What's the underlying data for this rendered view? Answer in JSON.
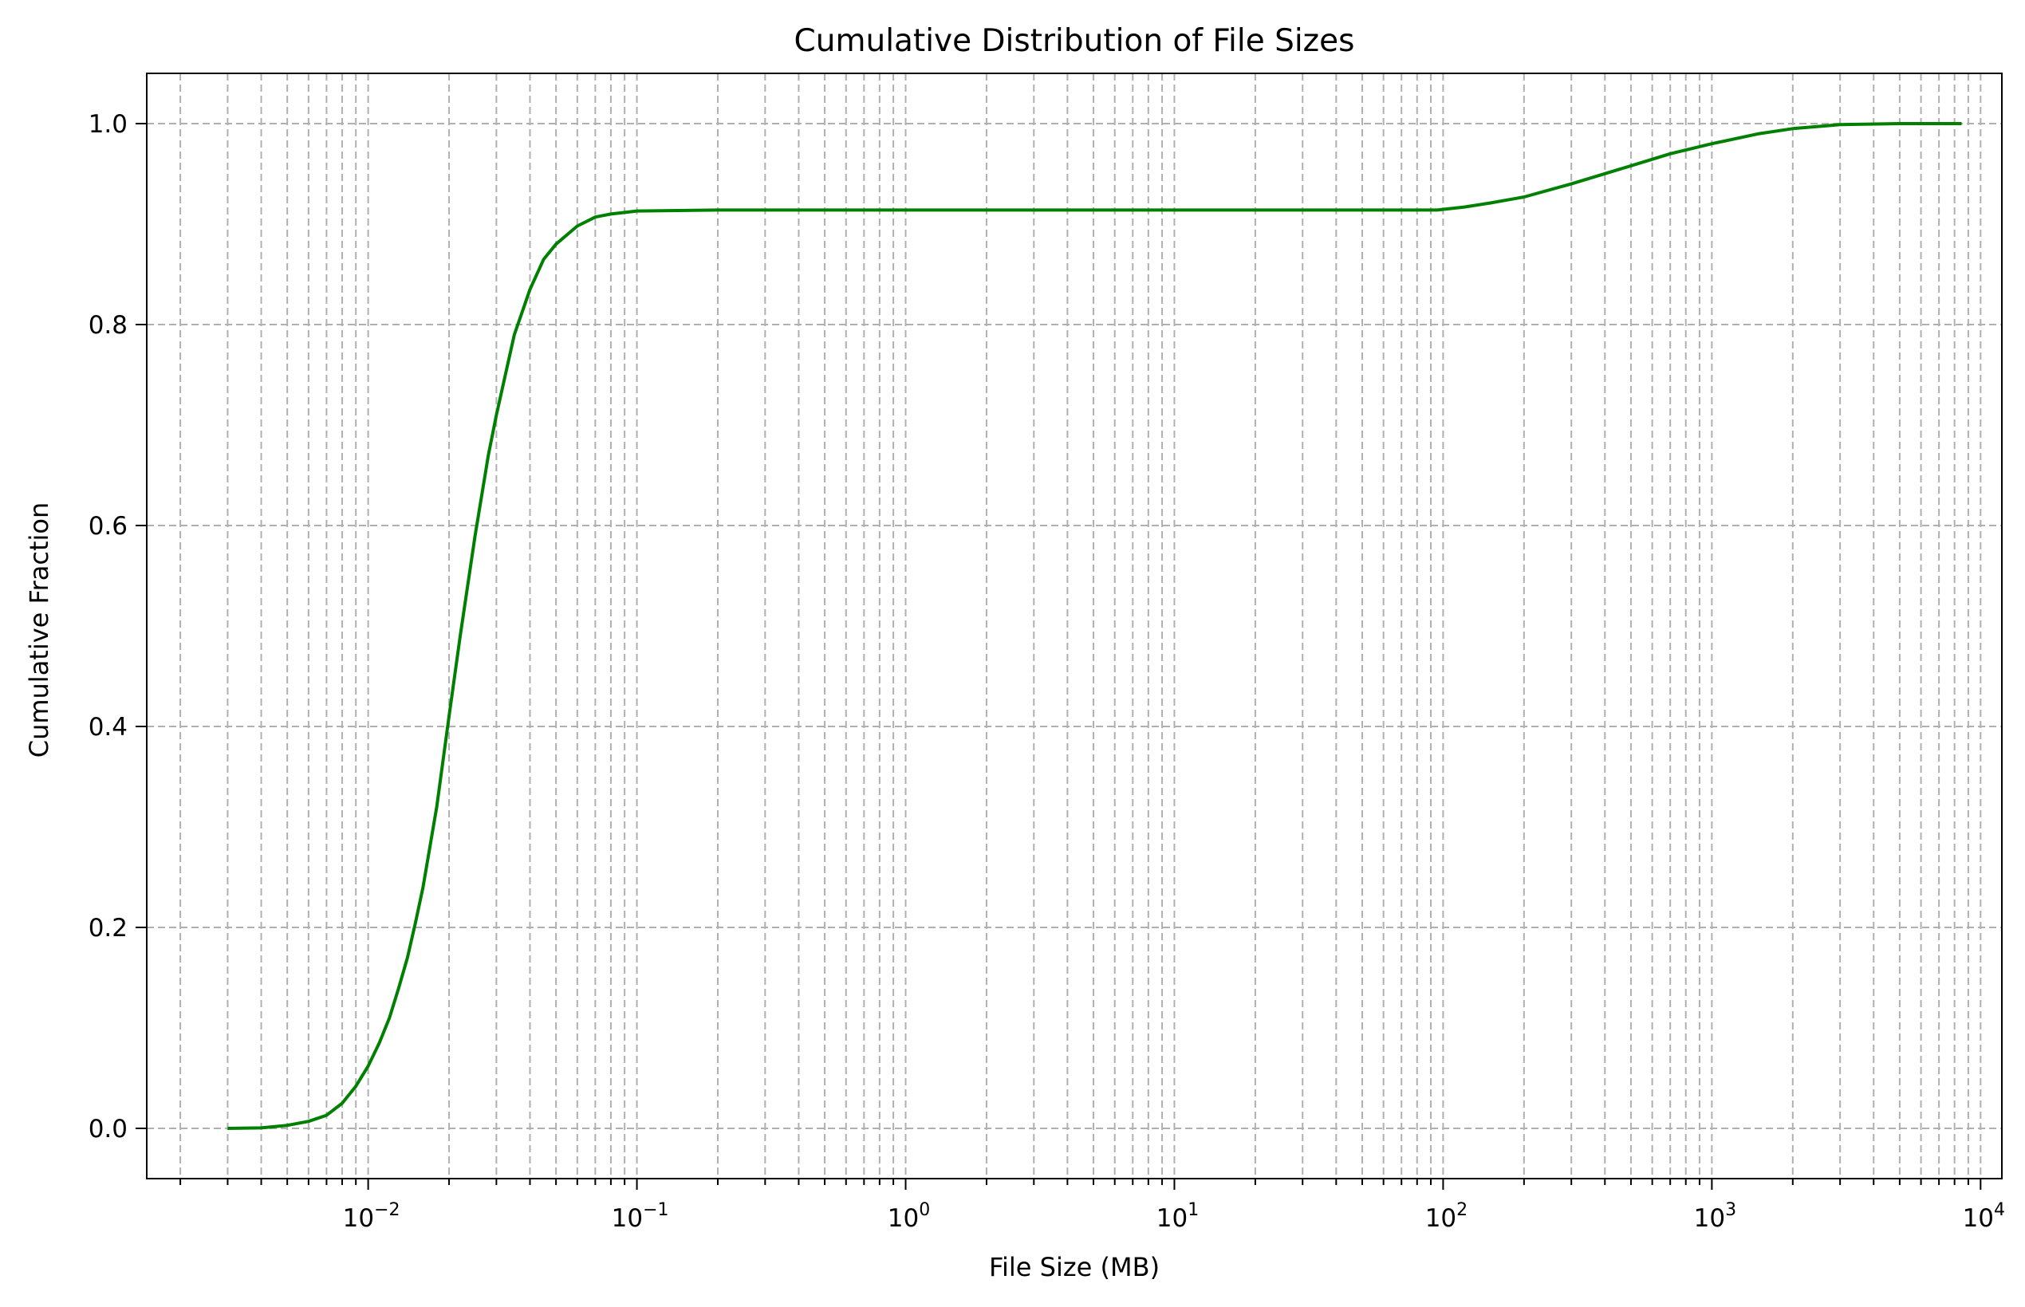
{
  "chart_data": {
    "type": "line",
    "title": "Cumulative Distribution of File Sizes",
    "xlabel": "File Size (MB)",
    "ylabel": "Cumulative Fraction",
    "x_scale": "log",
    "xlim": [
      0.0015,
      12000
    ],
    "ylim": [
      -0.05,
      1.05
    ],
    "x_ticks": [
      {
        "value": 0.01,
        "base": "10",
        "exp": "−2"
      },
      {
        "value": 0.1,
        "base": "10",
        "exp": "−1"
      },
      {
        "value": 1,
        "base": "10",
        "exp": "0"
      },
      {
        "value": 10,
        "base": "10",
        "exp": "1"
      },
      {
        "value": 100,
        "base": "10",
        "exp": "2"
      },
      {
        "value": 1000,
        "base": "10",
        "exp": "3"
      },
      {
        "value": 10000,
        "base": "10",
        "exp": "4"
      }
    ],
    "y_ticks": [
      "0.0",
      "0.2",
      "0.4",
      "0.6",
      "0.8",
      "1.0"
    ],
    "grid": true,
    "grid_style": "dashed",
    "line_color": "#008000",
    "series": [
      {
        "points": [
          [
            0.003,
            0.0
          ],
          [
            0.004,
            0.0005
          ],
          [
            0.005,
            0.003
          ],
          [
            0.006,
            0.007
          ],
          [
            0.007,
            0.013
          ],
          [
            0.008,
            0.025
          ],
          [
            0.009,
            0.042
          ],
          [
            0.01,
            0.062
          ],
          [
            0.011,
            0.085
          ],
          [
            0.012,
            0.11
          ],
          [
            0.013,
            0.14
          ],
          [
            0.014,
            0.17
          ],
          [
            0.015,
            0.205
          ],
          [
            0.016,
            0.24
          ],
          [
            0.018,
            0.32
          ],
          [
            0.02,
            0.41
          ],
          [
            0.022,
            0.49
          ],
          [
            0.025,
            0.59
          ],
          [
            0.028,
            0.67
          ],
          [
            0.03,
            0.71
          ],
          [
            0.035,
            0.79
          ],
          [
            0.04,
            0.835
          ],
          [
            0.045,
            0.865
          ],
          [
            0.05,
            0.88
          ],
          [
            0.06,
            0.898
          ],
          [
            0.07,
            0.907
          ],
          [
            0.08,
            0.91
          ],
          [
            0.1,
            0.913
          ],
          [
            0.2,
            0.914
          ],
          [
            1,
            0.914
          ],
          [
            10,
            0.914
          ],
          [
            95,
            0.914
          ],
          [
            120,
            0.917
          ],
          [
            150,
            0.921
          ],
          [
            200,
            0.927
          ],
          [
            300,
            0.94
          ],
          [
            500,
            0.958
          ],
          [
            700,
            0.97
          ],
          [
            1000,
            0.98
          ],
          [
            1500,
            0.99
          ],
          [
            2000,
            0.995
          ],
          [
            3000,
            0.999
          ],
          [
            5000,
            1.0
          ],
          [
            8500,
            1.0
          ]
        ]
      }
    ]
  }
}
